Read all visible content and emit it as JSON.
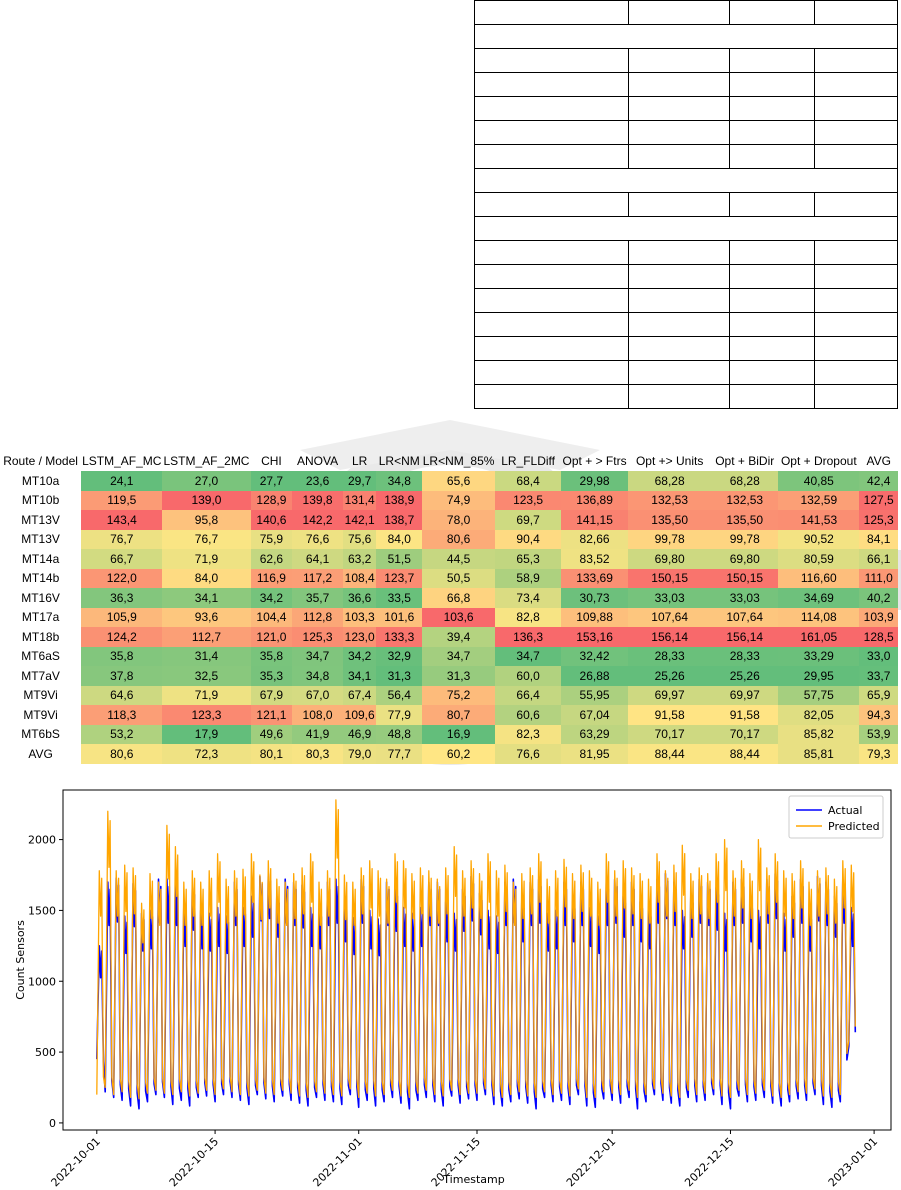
{
  "heatmap": {
    "header": [
      "Route / Model",
      "LSTM_AF_MC",
      "LSTM_AF_2MC",
      "CHI",
      "ANOVA",
      "LR",
      "LR<NM",
      "LR<NM_85%",
      "LR_FLDiff",
      "Opt + > Ftrs",
      "Opt +> Units",
      "Opt + BiDir",
      "Opt + Dropout",
      "AVG"
    ],
    "rows": [
      [
        "MT10a",
        "24,1",
        "27,0",
        "27,7",
        "23,6",
        "29,7",
        "34,8",
        "65,6",
        "68,4",
        "29,98",
        "68,28",
        "68,28",
        "40,85",
        "42,4"
      ],
      [
        "MT10b",
        "119,5",
        "139,0",
        "128,9",
        "139,8",
        "131,4",
        "138,9",
        "74,9",
        "123,5",
        "136,89",
        "132,53",
        "132,53",
        "132,59",
        "127,5"
      ],
      [
        "MT13V",
        "143,4",
        "95,8",
        "140,6",
        "142,2",
        "142,1",
        "138,7",
        "78,0",
        "69,7",
        "141,15",
        "135,50",
        "135,50",
        "141,53",
        "125,3"
      ],
      [
        "MT13V",
        "76,7",
        "76,7",
        "75,9",
        "76,6",
        "75,6",
        "84,0",
        "80,6",
        "90,4",
        "82,66",
        "99,78",
        "99,78",
        "90,52",
        "84,1"
      ],
      [
        "MT14a",
        "66,7",
        "71,9",
        "62,6",
        "64,1",
        "63,2",
        "51,5",
        "44,5",
        "65,3",
        "83,52",
        "69,80",
        "69,80",
        "80,59",
        "66,1"
      ],
      [
        "MT14b",
        "122,0",
        "84,0",
        "116,9",
        "117,2",
        "108,4",
        "123,7",
        "50,5",
        "58,9",
        "133,69",
        "150,15",
        "150,15",
        "116,60",
        "111,0"
      ],
      [
        "MT16V",
        "36,3",
        "34,1",
        "34,2",
        "35,7",
        "36,6",
        "33,5",
        "66,8",
        "73,4",
        "30,73",
        "33,03",
        "33,03",
        "34,69",
        "40,2"
      ],
      [
        "MT17a",
        "105,9",
        "93,6",
        "104,4",
        "112,8",
        "103,3",
        "101,6",
        "103,6",
        "82,8",
        "109,88",
        "107,64",
        "107,64",
        "114,08",
        "103,9"
      ],
      [
        "MT18b",
        "124,2",
        "112,7",
        "121,0",
        "125,3",
        "123,0",
        "133,3",
        "39,4",
        "136,3",
        "153,16",
        "156,14",
        "156,14",
        "161,05",
        "128,5"
      ],
      [
        "MT6aS",
        "35,8",
        "31,4",
        "35,8",
        "34,7",
        "34,2",
        "32,9",
        "34,7",
        "34,7",
        "32,42",
        "28,33",
        "28,33",
        "33,29",
        "33,0"
      ],
      [
        "MT7aV",
        "37,8",
        "32,5",
        "35,3",
        "34,8",
        "34,1",
        "31,3",
        "31,3",
        "60,0",
        "26,88",
        "25,26",
        "25,26",
        "29,95",
        "33,7"
      ],
      [
        "MT9Vi",
        "64,6",
        "71,9",
        "67,9",
        "67,0",
        "67,4",
        "56,4",
        "75,2",
        "66,4",
        "55,95",
        "69,97",
        "69,97",
        "57,75",
        "65,9"
      ],
      [
        "MT9Vi",
        "118,3",
        "123,3",
        "121,1",
        "108,0",
        "109,6",
        "77,9",
        "80,7",
        "60,6",
        "67,04",
        "91,58",
        "91,58",
        "82,05",
        "94,3"
      ],
      [
        "MT6bS",
        "53,2",
        "17,9",
        "49,6",
        "41,9",
        "46,9",
        "48,8",
        "16,9",
        "82,3",
        "63,29",
        "70,17",
        "70,17",
        "85,82",
        "53,9"
      ],
      [
        "AVG",
        "80,6",
        "72,3",
        "80,1",
        "80,3",
        "79,0",
        "77,7",
        "60,2",
        "76,6",
        "81,95",
        "88,44",
        "88,44",
        "85,81",
        "79,3"
      ]
    ]
  },
  "chart_data": {
    "type": "line",
    "xlabel": "Timestamp",
    "ylabel": "Count Sensors",
    "xlim": [
      "2022-10-01",
      "2022-12-30"
    ],
    "ylim": [
      -50,
      2350
    ],
    "yticks": [
      0,
      500,
      1000,
      1500,
      2000
    ],
    "xticks": [
      "2022-10-01",
      "2022-10-15",
      "2022-11-01",
      "2022-11-15",
      "2022-12-01",
      "2022-12-15",
      "2023-01-01"
    ],
    "legend_position": "upper right",
    "series": [
      {
        "name": "Actual",
        "color": "#0000ff",
        "daily_peaks": [
          1250,
          1700,
          1730,
          1460,
          1690,
          1480,
          1500,
          1720,
          1720,
          1700,
          1520,
          1660,
          1500,
          1480,
          1520,
          1460,
          1700,
          1520,
          1600,
          1740,
          1760,
          1600,
          1720,
          1700,
          1680,
          1520,
          1500,
          1700,
          1720,
          1560,
          1450,
          1720,
          1500,
          1440,
          1700,
          1650,
          1520,
          1480,
          1520,
          1700,
          1700,
          1560,
          1480,
          1650,
          1740,
          1620,
          1500,
          1460,
          1700,
          1720,
          1560,
          1700,
          1720,
          1480,
          1500,
          1700,
          1560,
          1700,
          1520,
          1460,
          1700,
          1720,
          1600,
          1700,
          1560,
          1500,
          1720,
          1760,
          1700,
          1500,
          1600,
          1720,
          1700,
          1660,
          1480,
          1700,
          1720,
          1560,
          1500,
          1720,
          1760,
          1480,
          1600,
          1720,
          1480,
          1740,
          1700,
          1600,
          1720,
          1520
        ],
        "daily_troughs": [
          450,
          220,
          180,
          160,
          120,
          100,
          150,
          200,
          180,
          130,
          160,
          120,
          180,
          190,
          150,
          200,
          180,
          160,
          130,
          200,
          170,
          150,
          190,
          160,
          140,
          120,
          180,
          160,
          150,
          130,
          200,
          110,
          160,
          120,
          150,
          180,
          140,
          100,
          160,
          180,
          150,
          120,
          190,
          140,
          170,
          160,
          200,
          130,
          120,
          150,
          170,
          140,
          100,
          180,
          150,
          160,
          130,
          200,
          120,
          110,
          170,
          160,
          140,
          180,
          100,
          150,
          200,
          160,
          140,
          120,
          180,
          150,
          160,
          200,
          130,
          100,
          190,
          150,
          160,
          180,
          140,
          120,
          150,
          170,
          160,
          200,
          130,
          110,
          150,
          540
        ]
      },
      {
        "name": "Predicted",
        "color": "#ffa500",
        "daily_peaks": [
          1780,
          2200,
          1780,
          1820,
          1800,
          1550,
          1760,
          1700,
          2100,
          1950,
          1700,
          1780,
          1700,
          1780,
          1900,
          1720,
          1780,
          1790,
          1900,
          1750,
          1850,
          1720,
          1700,
          1760,
          1800,
          1900,
          1700,
          1780,
          2280,
          1750,
          1700,
          1800,
          1850,
          1780,
          1720,
          1900,
          1850,
          1760,
          1800,
          1780,
          1720,
          1800,
          1950,
          1780,
          1850,
          1760,
          1900,
          1780,
          1820,
          1700,
          1760,
          1800,
          1900,
          1720,
          1780,
          1860,
          1760,
          1820,
          1780,
          1700,
          1900,
          1780,
          1850,
          1800,
          1760,
          1720,
          1900,
          1780,
          1820,
          1960,
          1760,
          1800,
          1760,
          1900,
          2000,
          1780,
          1850,
          1760,
          2000,
          1800,
          1900,
          1780,
          1760,
          1850,
          1700,
          1780,
          1800,
          1720,
          1850,
          1820
        ],
        "daily_troughs": [
          200,
          250,
          200,
          220,
          180,
          170,
          210,
          230,
          210,
          200,
          220,
          190,
          210,
          230,
          200,
          240,
          220,
          200,
          190,
          230,
          210,
          200,
          230,
          210,
          190,
          180,
          220,
          210,
          200,
          190,
          240,
          180,
          210,
          190,
          200,
          230,
          190,
          180,
          210,
          230,
          200,
          190,
          230,
          200,
          210,
          210,
          240,
          190,
          180,
          200,
          220,
          190,
          180,
          220,
          200,
          210,
          190,
          240,
          180,
          180,
          220,
          210,
          200,
          230,
          180,
          200,
          240,
          210,
          190,
          180,
          230,
          200,
          210,
          240,
          190,
          180,
          230,
          200,
          210,
          230,
          190,
          180,
          200,
          220,
          210,
          240,
          190,
          180,
          200,
          580
        ]
      }
    ]
  }
}
